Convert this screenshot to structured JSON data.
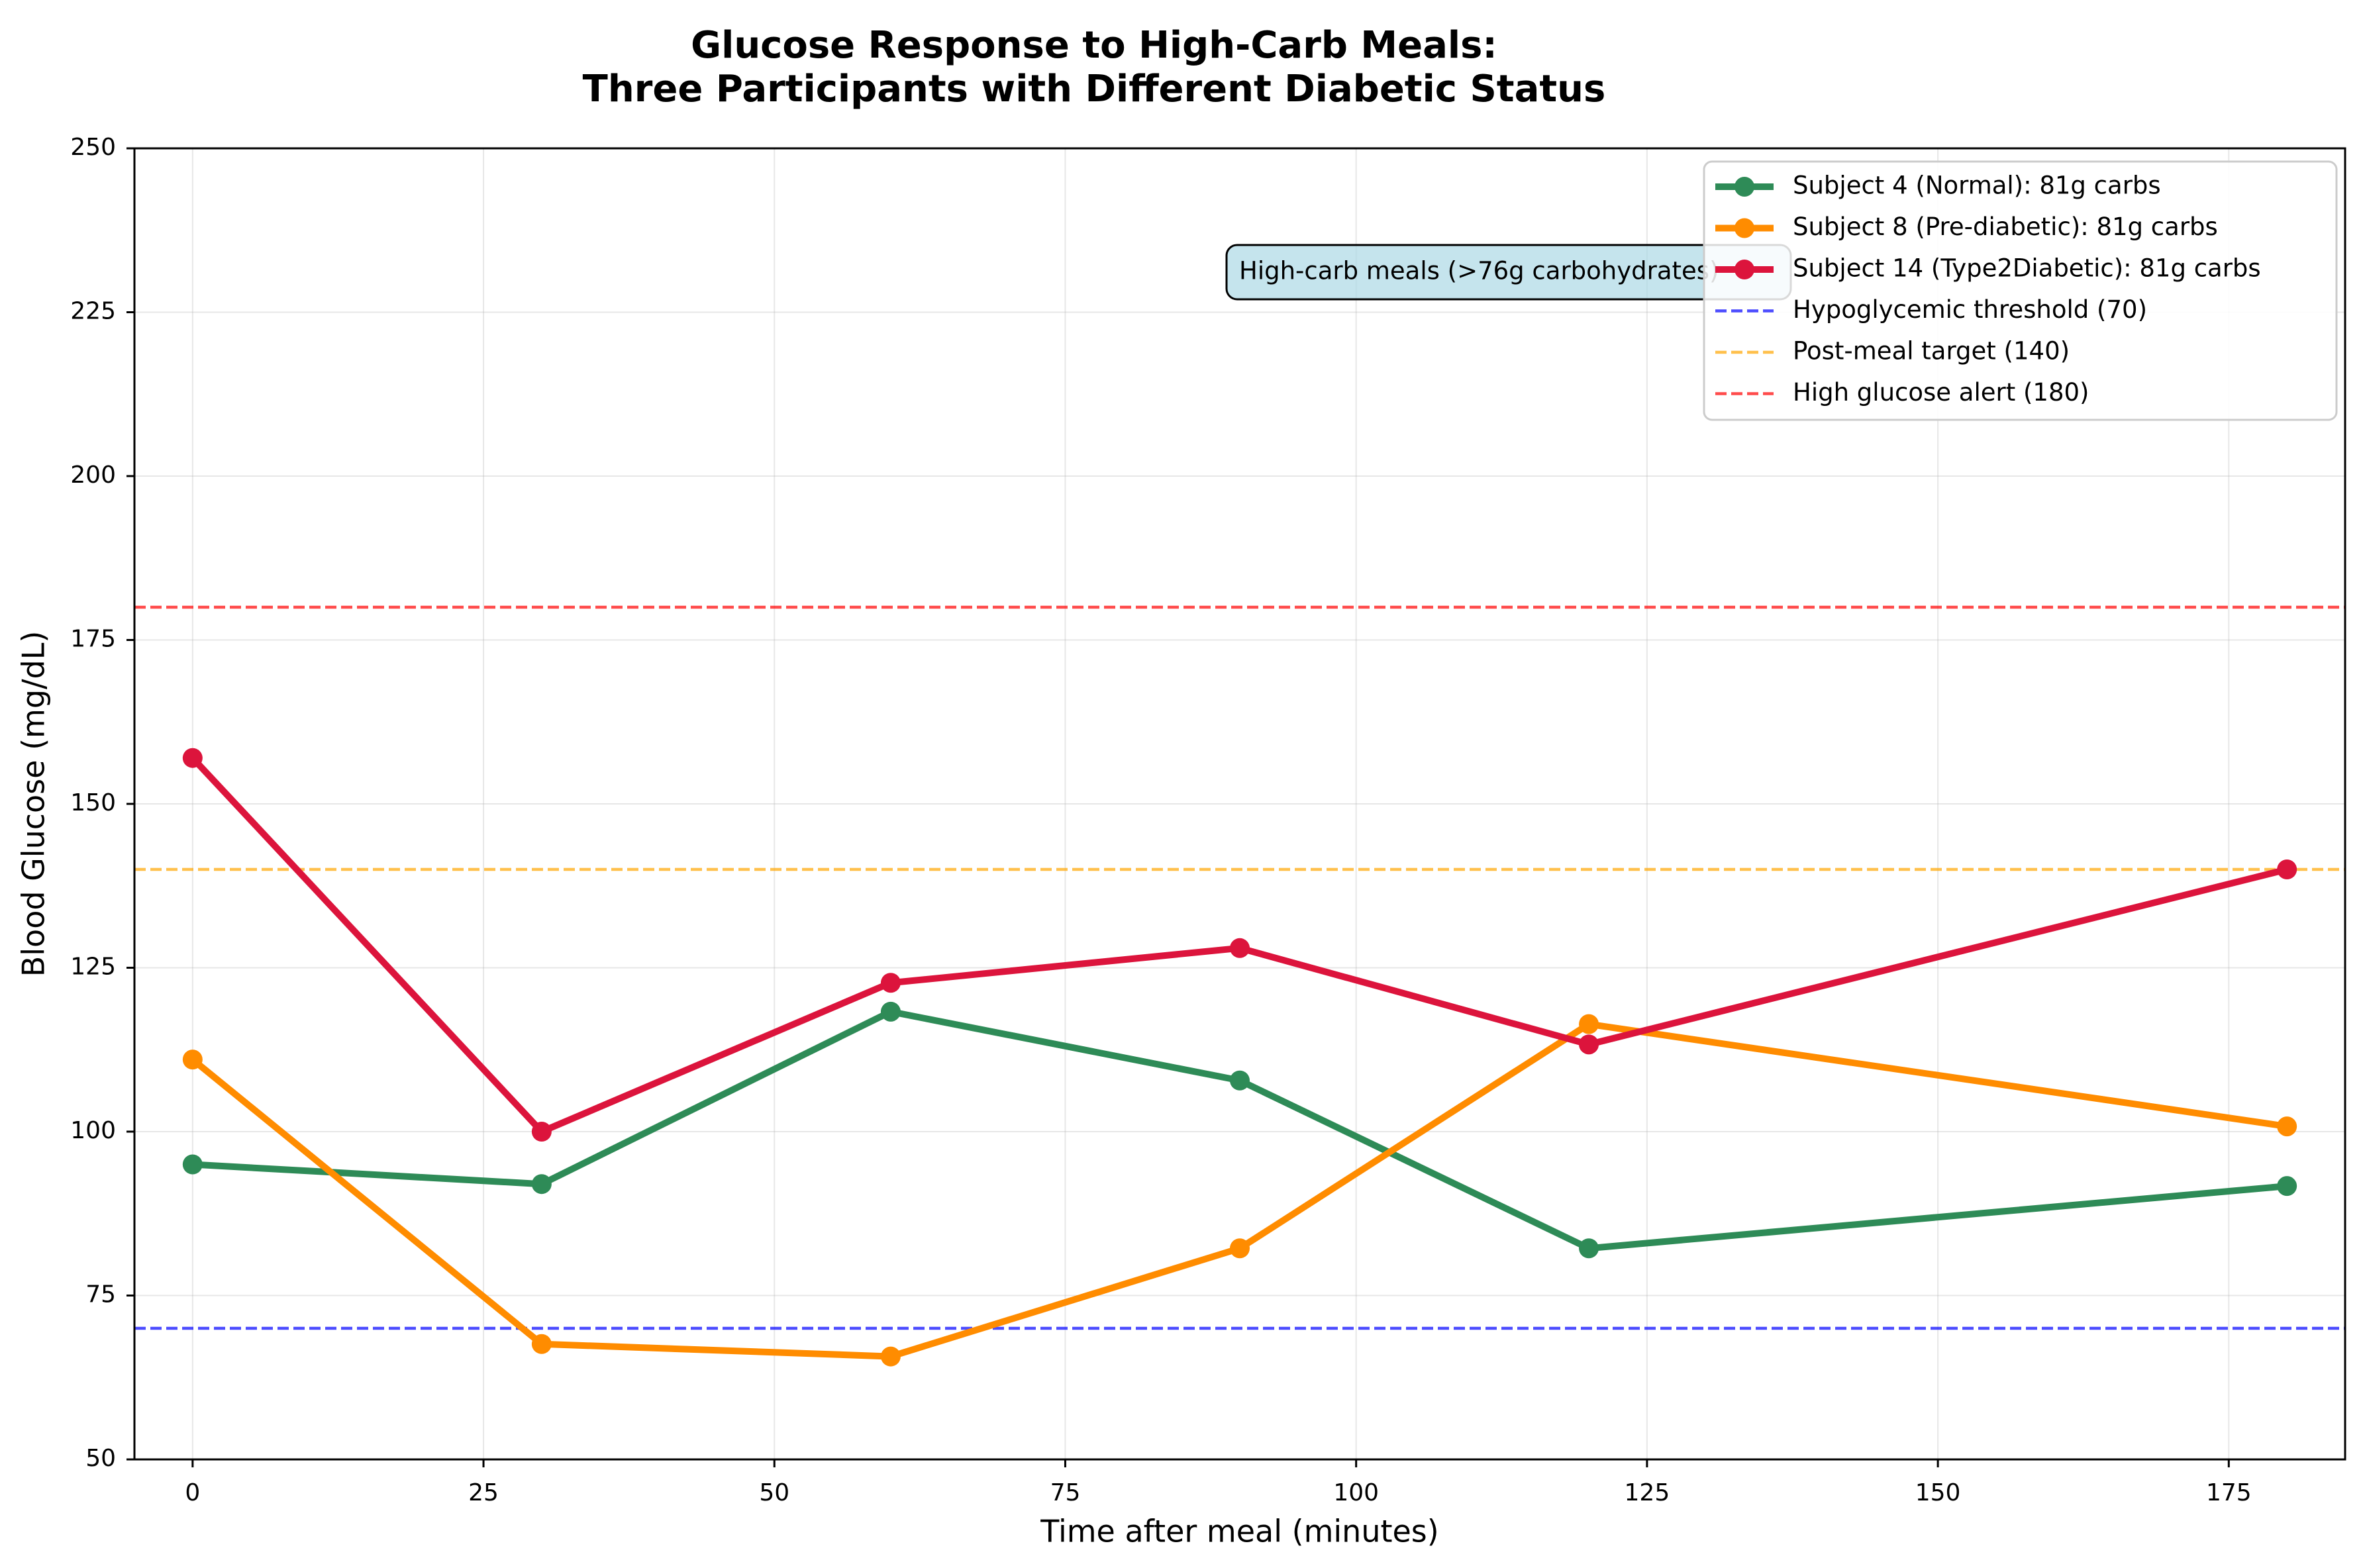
{
  "chart_data": {
    "type": "line",
    "title_line1": "Glucose Response to High-Carb Meals:",
    "title_line2": "Three Participants with Different Diabetic Status",
    "xlabel": "Time after meal (minutes)",
    "ylabel": "Blood Glucose (mg/dL)",
    "xlim": [
      -5,
      185
    ],
    "ylim": [
      50,
      250
    ],
    "x_ticks": [
      0,
      25,
      50,
      75,
      100,
      125,
      150,
      175
    ],
    "y_ticks": [
      50,
      75,
      100,
      125,
      150,
      175,
      200,
      225,
      250
    ],
    "grid": true,
    "legend_position": "top-right",
    "x": [
      0,
      30,
      60,
      90,
      120,
      180
    ],
    "series": [
      {
        "name": "Subject 4 (Normal): 81g carbs",
        "color": "#2e8b57",
        "values": [
          95,
          92,
          118.3,
          107.8,
          82.2,
          91.7
        ]
      },
      {
        "name": "Subject 8 (Pre-diabetic): 81g carbs",
        "color": "#ff8c00",
        "values": [
          111,
          67.6,
          65.7,
          82.2,
          116.4,
          100.8
        ]
      },
      {
        "name": "Subject 14 (Type2Diabetic): 81g carbs",
        "color": "#dc143c",
        "values": [
          157,
          100,
          122.7,
          128,
          113.3,
          140
        ]
      }
    ],
    "reference_lines": [
      {
        "name": "Hypoglycemic threshold (70)",
        "value": 70,
        "color": "#0000ff"
      },
      {
        "name": "Post-meal target (140)",
        "value": 140,
        "color": "#ffa500"
      },
      {
        "name": "High glucose alert (180)",
        "value": 180,
        "color": "#ff0000"
      }
    ],
    "annotation": "High-carb meals (>76g carbohydrates)"
  }
}
